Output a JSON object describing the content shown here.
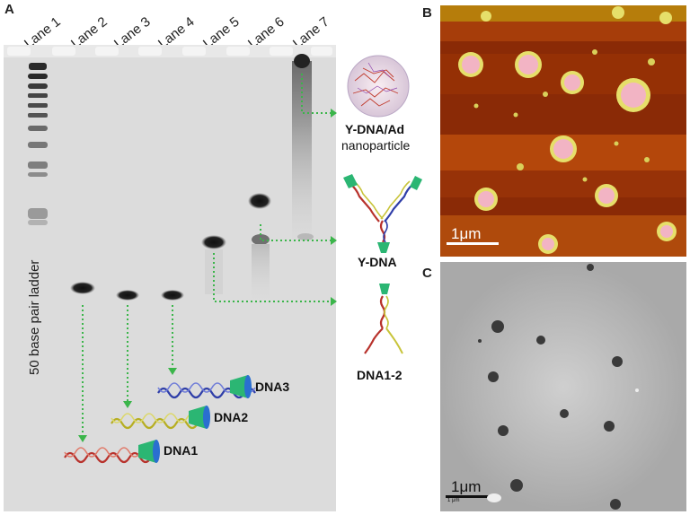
{
  "panels": {
    "a": "A",
    "b": "B",
    "c": "C"
  },
  "lanes": [
    "Lane 1",
    "Lane 2",
    "Lane 3",
    "Lane 4",
    "Lane 5",
    "Lane 6",
    "Lane 7"
  ],
  "ladder_label": "50 base pair ladder",
  "strands": {
    "dna1": "DNA1",
    "dna2": "DNA2",
    "dna3": "DNA3"
  },
  "schematics": {
    "nanoparticle_line1": "Y-DNA/Ad",
    "nanoparticle_line2": "nanoparticle",
    "ydna": "Y-DNA",
    "dna12": "DNA1-2"
  },
  "scale_bars": {
    "afm": "1μm",
    "tem": "1μm",
    "tem_small": "1 μm"
  },
  "colors": {
    "arrow": "#3bb54a",
    "dna1": "#b8322c",
    "dna2": "#c8c43a",
    "dna3": "#2f3ea8",
    "cap": "#2bb673",
    "afm_bg": "#8a2a06",
    "afm_band": "#b84a0c",
    "afm_particle": "#f2b4c4",
    "afm_rim": "#e6df6a"
  }
}
